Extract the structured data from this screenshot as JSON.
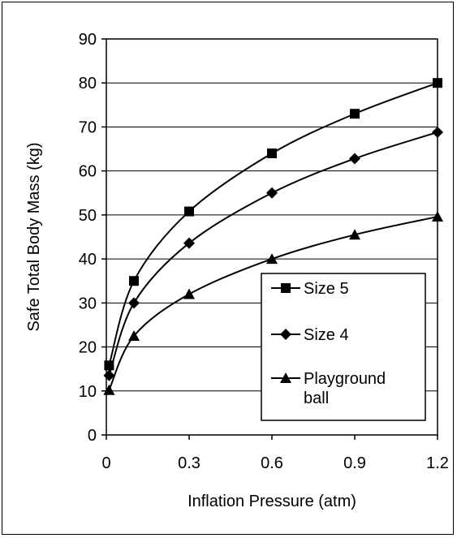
{
  "chart_data": {
    "type": "line",
    "title": "",
    "xlabel": "Inflation Pressure (atm)",
    "ylabel": "Safe Total Body Mass (kg)",
    "xlim": [
      0,
      1.2
    ],
    "ylim": [
      0,
      90
    ],
    "xticks": [
      0,
      0.3,
      0.6,
      0.9,
      1.2
    ],
    "xtick_labels": [
      "0",
      "0.3",
      "0.6",
      "0.9",
      "1.2"
    ],
    "yticks": [
      0,
      10,
      20,
      30,
      40,
      50,
      60,
      70,
      80,
      90
    ],
    "ytick_labels": [
      "0",
      "10",
      "20",
      "30",
      "40",
      "50",
      "60",
      "70",
      "80",
      "90"
    ],
    "grid": "horizontal",
    "legend_position": "lower-right",
    "series": [
      {
        "name": "Size 5",
        "marker": "square",
        "color": "#000000",
        "x": [
          0.01,
          0.1,
          0.3,
          0.6,
          0.9,
          1.2
        ],
        "y": [
          15.8,
          35,
          50.8,
          64,
          73,
          80
        ]
      },
      {
        "name": "Size 4",
        "marker": "diamond",
        "color": "#000000",
        "x": [
          0.01,
          0.1,
          0.3,
          0.6,
          0.9,
          1.2
        ],
        "y": [
          13.5,
          30,
          43.6,
          55,
          62.8,
          68.8
        ]
      },
      {
        "name": "Playground ball",
        "marker": "triangle",
        "color": "#000000",
        "x": [
          0.01,
          0.1,
          0.3,
          0.6,
          0.9,
          1.2
        ],
        "y": [
          10.2,
          22.5,
          32,
          40,
          45.5,
          49.6
        ]
      }
    ],
    "legend": {
      "entries": [
        {
          "label_lines": [
            "Size 5"
          ],
          "marker": "square"
        },
        {
          "label_lines": [
            "Size 4"
          ],
          "marker": "diamond"
        },
        {
          "label_lines": [
            "Playground",
            "ball"
          ],
          "marker": "triangle"
        }
      ]
    }
  }
}
